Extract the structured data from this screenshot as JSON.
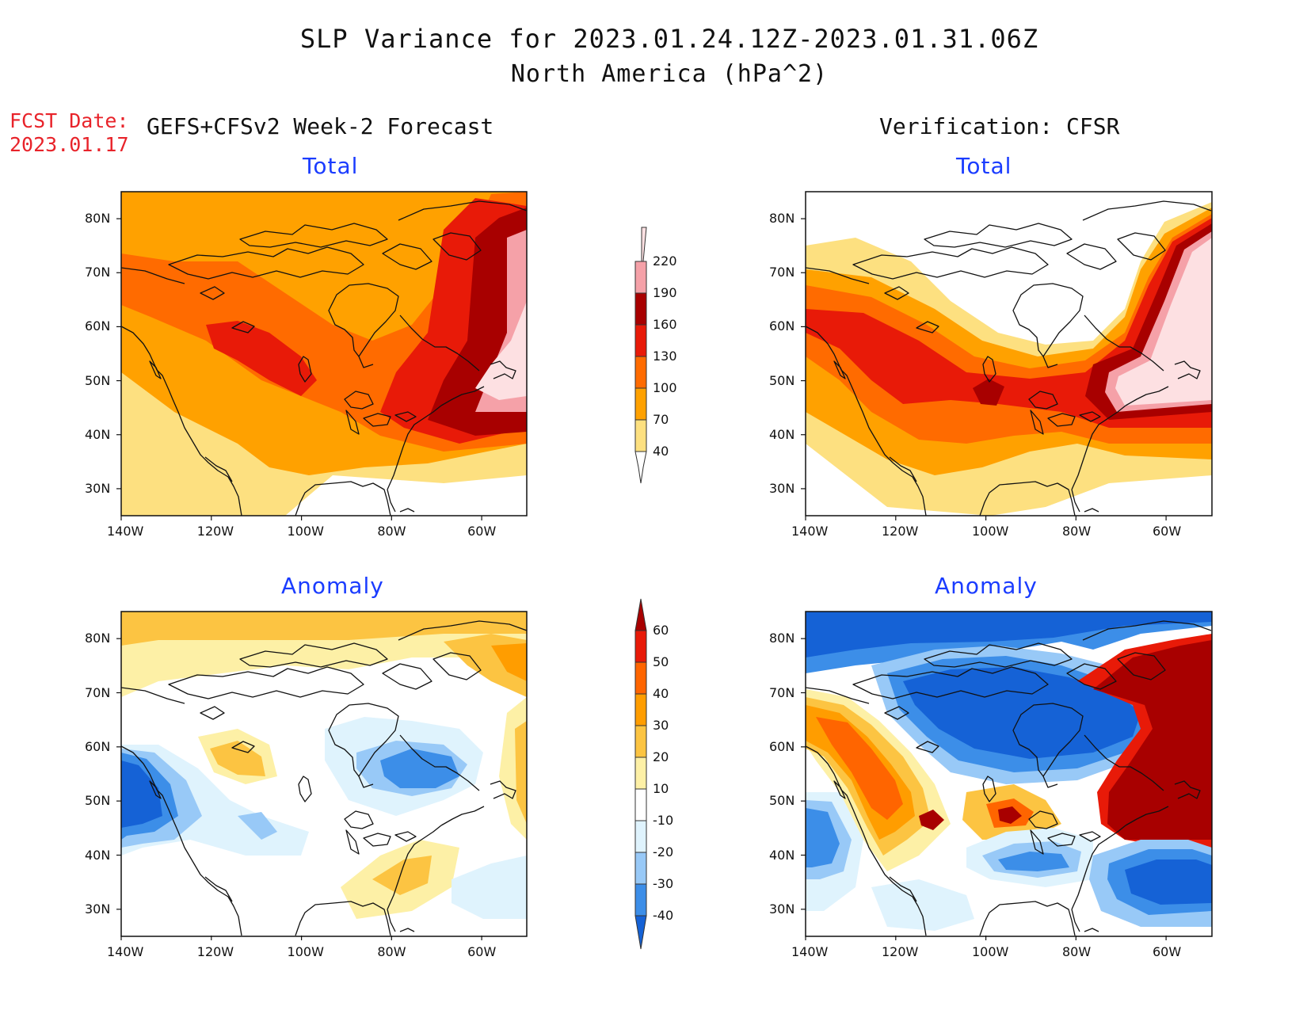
{
  "header": {
    "title": "SLP Variance for 2023.01.24.12Z-2023.01.31.06Z",
    "subtitle": "North America (hPa^2)",
    "fcst_label": "FCST Date:",
    "fcst_date": "2023.01.17"
  },
  "columns": {
    "left_title": "GEFS+CFSv2 Week-2 Forecast",
    "right_title": "Verification: CFSR"
  },
  "panels": {
    "top_left": "Total",
    "top_right": "Total",
    "bottom_left": "Anomaly",
    "bottom_right": "Anomaly"
  },
  "axes": {
    "lat_labels": [
      "80N",
      "70N",
      "60N",
      "50N",
      "40N",
      "30N"
    ],
    "lat_values": [
      80,
      70,
      60,
      50,
      40,
      30
    ],
    "lon_labels": [
      "140W",
      "120W",
      "100W",
      "80W",
      "60W"
    ],
    "lon_values": [
      -140,
      -120,
      -100,
      -80,
      -60
    ],
    "lon_range": [
      -140,
      -50
    ],
    "lat_range": [
      25,
      85
    ]
  },
  "colorbar_total": {
    "levels": [
      "40",
      "70",
      "100",
      "130",
      "160",
      "190",
      "220"
    ],
    "colors": [
      "#fde080",
      "#ffa100",
      "#ff6b00",
      "#e81a08",
      "#a80000",
      "#f5a1a8",
      "#fde0e2"
    ]
  },
  "colorbar_anomaly": {
    "levels": [
      "-40",
      "-30",
      "-20",
      "-10",
      "10",
      "20",
      "30",
      "40",
      "50",
      "60"
    ],
    "colors": [
      "#1562d6",
      "#3c8ee8",
      "#98c9f7",
      "#dff3fd",
      "#ffffff",
      "#fdf0a6",
      "#fcc442",
      "#ff9d00",
      "#ff6500",
      "#e81a08",
      "#a80000"
    ]
  }
}
